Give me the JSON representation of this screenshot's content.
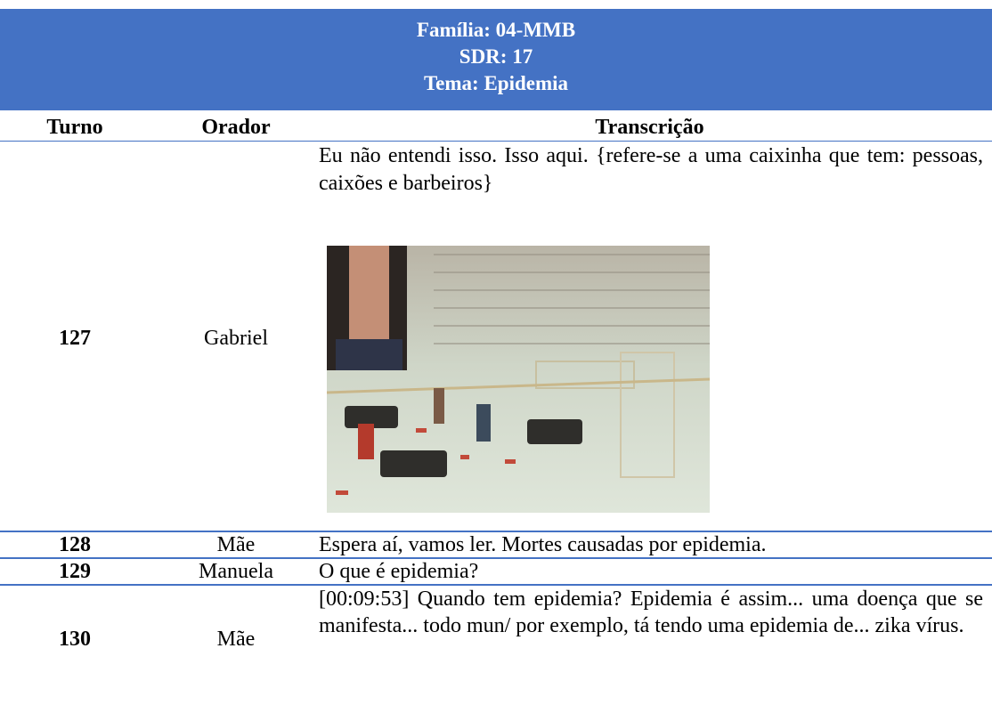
{
  "header": {
    "lines": [
      "Família: 04-MMB",
      "SDR: 17",
      "Tema: Epidemia"
    ]
  },
  "table": {
    "columns": [
      "Turno",
      "Orador",
      "Transcrição"
    ],
    "rows": [
      [
        "127",
        "Gabriel",
        "Eu não entendi isso. Isso aqui. {refere-se a uma caixinha que tem: pessoas, caixões e barbeiros}"
      ],
      [
        "128",
        "Mãe",
        "Espera aí, vamos ler. Mortes causadas por epidemia."
      ],
      [
        "129",
        "Manuela",
        "O que é epidemia?"
      ],
      [
        "130",
        "Mãe",
        "[00:09:53] Quando tem epidemia?  Epidemia é assim... uma doença que se manifesta... todo mun/ por exemplo, tá tendo uma epidemia de... zika vírus."
      ]
    ]
  }
}
